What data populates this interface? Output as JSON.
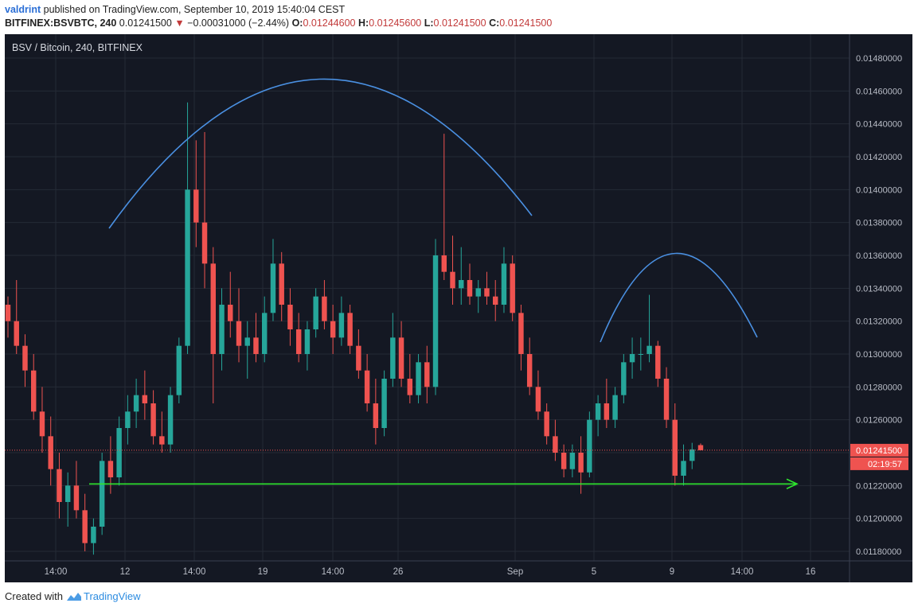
{
  "header": {
    "user": "valdrint",
    "published_text": "published on TradingView.com, September 10, 2019 15:40:04 CEST",
    "symbol": "BITFINEX:BSVBTC, 240",
    "last_price": "0.01241500",
    "change_arrow": "▼",
    "change": "−0.00031000 (−2.44%)",
    "o_label": "O:",
    "o_value": "0.01244600",
    "h_label": "H:",
    "h_value": "0.01245600",
    "l_label": "L:",
    "l_value": "0.01241500",
    "c_label": "C:",
    "c_value": "0.01241500"
  },
  "chart_title": "BSV / Bitcoin, 240, BITFINEX",
  "footer": {
    "created_with": "Created with",
    "brand": "TradingView"
  },
  "colors": {
    "background": "#141823",
    "grid": "#252a36",
    "up": "#26a69a",
    "down": "#ef5350",
    "annotation_arc": "#4a90e2",
    "support_line": "#2ee52e",
    "axis_text": "#b8bcc6",
    "price_label_bg": "#ef5350"
  },
  "chart_data": {
    "type": "candlestick",
    "title": "BSV / Bitcoin, 240, BITFINEX",
    "ylim": [
      0.01173,
      0.01492
    ],
    "y_ticks": [
      "0.01480000",
      "0.01460000",
      "0.01440000",
      "0.01420000",
      "0.01400000",
      "0.01380000",
      "0.01360000",
      "0.01340000",
      "0.01320000",
      "0.01300000",
      "0.01280000",
      "0.01260000",
      "0.01240000",
      "0.01220000",
      "0.01200000",
      "0.01180000"
    ],
    "x_ticks": [
      "14:00",
      "12",
      "14:00",
      "19",
      "14:00",
      "26",
      "Sep",
      "5",
      "9",
      "14:00",
      "16"
    ],
    "last_price": {
      "value": 0.012415,
      "label": "0.01241500",
      "countdown": "02:19:57"
    },
    "support_level": 0.01221,
    "candles": [
      [
        0.0133,
        0.01335,
        0.0131,
        0.0132
      ],
      [
        0.0132,
        0.01345,
        0.013,
        0.01305
      ],
      [
        0.01305,
        0.01312,
        0.0128,
        0.0129
      ],
      [
        0.0129,
        0.013,
        0.0126,
        0.01265
      ],
      [
        0.01265,
        0.0128,
        0.0124,
        0.0125
      ],
      [
        0.0125,
        0.01262,
        0.0122,
        0.0123
      ],
      [
        0.0123,
        0.0124,
        0.012,
        0.0121
      ],
      [
        0.0121,
        0.01228,
        0.01195,
        0.0122
      ],
      [
        0.0122,
        0.01235,
        0.012,
        0.01205
      ],
      [
        0.01205,
        0.01215,
        0.0118,
        0.01185
      ],
      [
        0.01185,
        0.012,
        0.01178,
        0.01195
      ],
      [
        0.01195,
        0.0124,
        0.0119,
        0.01235
      ],
      [
        0.01235,
        0.0125,
        0.01215,
        0.01225
      ],
      [
        0.01225,
        0.01262,
        0.0122,
        0.01255
      ],
      [
        0.01255,
        0.01275,
        0.01245,
        0.01265
      ],
      [
        0.01265,
        0.01285,
        0.01255,
        0.01275
      ],
      [
        0.01275,
        0.0129,
        0.0126,
        0.0127
      ],
      [
        0.0127,
        0.01278,
        0.01245,
        0.0125
      ],
      [
        0.0125,
        0.01265,
        0.0124,
        0.01245
      ],
      [
        0.01245,
        0.0128,
        0.0124,
        0.01275
      ],
      [
        0.01275,
        0.0131,
        0.0127,
        0.01305
      ],
      [
        0.01305,
        0.01453,
        0.013,
        0.014
      ],
      [
        0.014,
        0.0143,
        0.01365,
        0.0138
      ],
      [
        0.0138,
        0.01435,
        0.0134,
        0.01355
      ],
      [
        0.01355,
        0.01365,
        0.0127,
        0.013
      ],
      [
        0.013,
        0.0134,
        0.0129,
        0.0133
      ],
      [
        0.0133,
        0.0135,
        0.0131,
        0.0132
      ],
      [
        0.0132,
        0.0134,
        0.01295,
        0.01305
      ],
      [
        0.01305,
        0.0132,
        0.01285,
        0.0131
      ],
      [
        0.0131,
        0.01325,
        0.01295,
        0.013
      ],
      [
        0.013,
        0.01335,
        0.01295,
        0.01325
      ],
      [
        0.01325,
        0.0137,
        0.0132,
        0.01355
      ],
      [
        0.01355,
        0.01362,
        0.0132,
        0.0133
      ],
      [
        0.0133,
        0.0134,
        0.01305,
        0.01315
      ],
      [
        0.01315,
        0.01325,
        0.01295,
        0.013
      ],
      [
        0.013,
        0.0132,
        0.0129,
        0.01315
      ],
      [
        0.01315,
        0.0134,
        0.0131,
        0.01335
      ],
      [
        0.01335,
        0.01345,
        0.01315,
        0.0132
      ],
      [
        0.0132,
        0.0133,
        0.013,
        0.0131
      ],
      [
        0.0131,
        0.01335,
        0.01305,
        0.01325
      ],
      [
        0.01325,
        0.0133,
        0.013,
        0.01305
      ],
      [
        0.01305,
        0.01315,
        0.01285,
        0.0129
      ],
      [
        0.0129,
        0.013,
        0.01265,
        0.0127
      ],
      [
        0.0127,
        0.01285,
        0.01245,
        0.01255
      ],
      [
        0.01255,
        0.0129,
        0.0125,
        0.01285
      ],
      [
        0.01285,
        0.01325,
        0.0128,
        0.0131
      ],
      [
        0.0131,
        0.0132,
        0.0128,
        0.01285
      ],
      [
        0.01285,
        0.013,
        0.0127,
        0.01275
      ],
      [
        0.01275,
        0.013,
        0.0127,
        0.01295
      ],
      [
        0.01295,
        0.01305,
        0.0127,
        0.0128
      ],
      [
        0.0128,
        0.0137,
        0.01275,
        0.0136
      ],
      [
        0.0136,
        0.01434,
        0.01345,
        0.0135
      ],
      [
        0.0135,
        0.01372,
        0.0133,
        0.0134
      ],
      [
        0.0134,
        0.01365,
        0.0133,
        0.01345
      ],
      [
        0.01345,
        0.01355,
        0.0133,
        0.01335
      ],
      [
        0.01335,
        0.01345,
        0.01325,
        0.0134
      ],
      [
        0.0134,
        0.0135,
        0.0133,
        0.01335
      ],
      [
        0.01335,
        0.01345,
        0.0132,
        0.0133
      ],
      [
        0.0133,
        0.01365,
        0.01325,
        0.01355
      ],
      [
        0.01355,
        0.0136,
        0.0132,
        0.01325
      ],
      [
        0.01325,
        0.0133,
        0.0129,
        0.013
      ],
      [
        0.013,
        0.0131,
        0.01275,
        0.0128
      ],
      [
        0.0128,
        0.0129,
        0.0126,
        0.01265
      ],
      [
        0.01265,
        0.0127,
        0.01245,
        0.0125
      ],
      [
        0.0125,
        0.0126,
        0.01235,
        0.0124
      ],
      [
        0.0124,
        0.01245,
        0.01225,
        0.0123
      ],
      [
        0.0123,
        0.01245,
        0.01225,
        0.0124
      ],
      [
        0.0124,
        0.0125,
        0.01215,
        0.01228
      ],
      [
        0.01228,
        0.01265,
        0.01225,
        0.0126
      ],
      [
        0.0126,
        0.01275,
        0.0125,
        0.0127
      ],
      [
        0.0127,
        0.01285,
        0.01255,
        0.0126
      ],
      [
        0.0126,
        0.0128,
        0.01255,
        0.01275
      ],
      [
        0.01275,
        0.013,
        0.0127,
        0.01295
      ],
      [
        0.01295,
        0.0131,
        0.01285,
        0.013
      ],
      [
        0.013,
        0.0131,
        0.0129,
        0.013
      ],
      [
        0.013,
        0.01336,
        0.01295,
        0.01305
      ],
      [
        0.01305,
        0.01308,
        0.0128,
        0.01285
      ],
      [
        0.01285,
        0.01292,
        0.01255,
        0.0126
      ],
      [
        0.0126,
        0.0127,
        0.0122,
        0.01226
      ],
      [
        0.01226,
        0.01245,
        0.0122,
        0.01235
      ],
      [
        0.01235,
        0.01246,
        0.0123,
        0.01242
      ],
      [
        0.012446,
        0.012456,
        0.012415,
        0.012415
      ]
    ]
  }
}
